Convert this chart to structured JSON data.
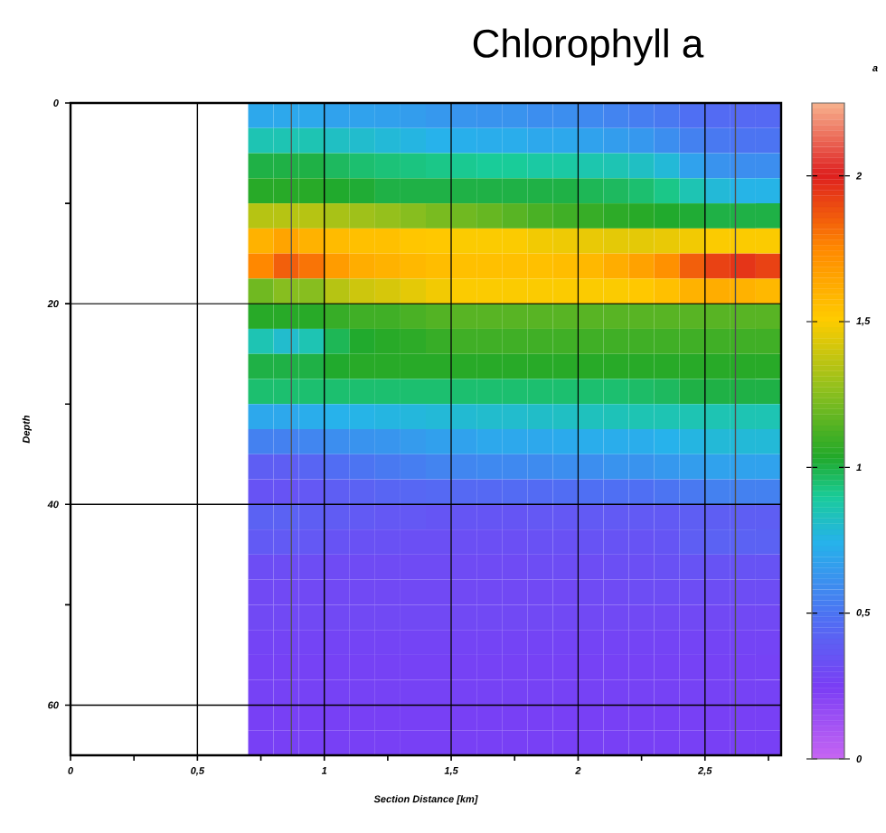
{
  "chart_data": {
    "type": "heatmap",
    "title": "Chlorophyll a",
    "xlabel": "Section Distance [km]",
    "ylabel": "Depth",
    "clabel": "a",
    "xlim": [
      0,
      2.8
    ],
    "ylim": [
      65,
      0
    ],
    "xticks": [
      {
        "value": 0,
        "label": "0"
      },
      {
        "value": 0.25,
        "label": null
      },
      {
        "value": 0.5,
        "label": "0,5"
      },
      {
        "value": 0.75,
        "label": null
      },
      {
        "value": 1,
        "label": "1"
      },
      {
        "value": 1.25,
        "label": null
      },
      {
        "value": 1.5,
        "label": "1,5"
      },
      {
        "value": 1.75,
        "label": null
      },
      {
        "value": 2,
        "label": "2"
      },
      {
        "value": 2.25,
        "label": null
      },
      {
        "value": 2.5,
        "label": "2,5"
      },
      {
        "value": 2.75,
        "label": null
      }
    ],
    "yticks": [
      {
        "value": 0,
        "label": "0"
      },
      {
        "value": 10,
        "label": null
      },
      {
        "value": 20,
        "label": "20"
      },
      {
        "value": 30,
        "label": null
      },
      {
        "value": 40,
        "label": "40"
      },
      {
        "value": 50,
        "label": null
      },
      {
        "value": 60,
        "label": "60"
      }
    ],
    "grid": true,
    "clim": [
      0,
      2.25
    ],
    "cticks": [
      {
        "value": 0,
        "label": "0"
      },
      {
        "value": 0.5,
        "label": "0,5"
      },
      {
        "value": 1,
        "label": "1"
      },
      {
        "value": 1.5,
        "label": "1,5"
      },
      {
        "value": 2,
        "label": "2"
      }
    ],
    "ref_lines": [
      {
        "axis": "x",
        "value": 0.87,
        "color": "#505050"
      },
      {
        "axis": "x",
        "value": 2.62,
        "color": "#505050"
      }
    ],
    "cells": [
      [
        null,
        null,
        null,
        null,
        null,
        null,
        null,
        0.7,
        0.7,
        0.7,
        0.68,
        0.68,
        0.67,
        0.66,
        0.64,
        0.63,
        0.62,
        0.62,
        0.6,
        0.6,
        0.58,
        0.56,
        0.54,
        0.52,
        0.48,
        0.46,
        0.45,
        0.45
      ],
      [
        null,
        null,
        null,
        null,
        null,
        null,
        null,
        0.85,
        0.85,
        0.85,
        0.82,
        0.8,
        0.78,
        0.76,
        0.74,
        0.73,
        0.72,
        0.72,
        0.7,
        0.7,
        0.68,
        0.66,
        0.64,
        0.6,
        0.55,
        0.52,
        0.5,
        0.5
      ],
      [
        null,
        null,
        null,
        null,
        null,
        null,
        null,
        1.0,
        1.0,
        1.0,
        0.97,
        0.95,
        0.94,
        0.93,
        0.92,
        0.91,
        0.9,
        0.9,
        0.88,
        0.88,
        0.86,
        0.85,
        0.82,
        0.78,
        0.68,
        0.62,
        0.6,
        0.6
      ],
      [
        null,
        null,
        null,
        null,
        null,
        null,
        null,
        1.05,
        1.05,
        1.05,
        1.03,
        1.02,
        1.0,
        1.0,
        1.0,
        1.0,
        1.0,
        1.0,
        1.0,
        1.0,
        0.98,
        0.97,
        0.95,
        0.92,
        0.85,
        0.78,
        0.75,
        0.75
      ],
      [
        null,
        null,
        null,
        null,
        null,
        null,
        null,
        1.35,
        1.35,
        1.35,
        1.32,
        1.3,
        1.28,
        1.25,
        1.22,
        1.2,
        1.18,
        1.15,
        1.12,
        1.1,
        1.08,
        1.06,
        1.05,
        1.03,
        1.02,
        1.0,
        1.0,
        1.0
      ],
      [
        null,
        null,
        null,
        null,
        null,
        null,
        null,
        1.6,
        1.65,
        1.6,
        1.57,
        1.55,
        1.55,
        1.53,
        1.52,
        1.5,
        1.5,
        1.5,
        1.48,
        1.47,
        1.46,
        1.45,
        1.45,
        1.46,
        1.48,
        1.5,
        1.5,
        1.5
      ],
      [
        null,
        null,
        null,
        null,
        null,
        null,
        null,
        1.75,
        1.85,
        1.8,
        1.68,
        1.62,
        1.6,
        1.58,
        1.56,
        1.55,
        1.55,
        1.55,
        1.55,
        1.56,
        1.58,
        1.62,
        1.66,
        1.72,
        1.85,
        1.92,
        1.95,
        1.92
      ],
      [
        null,
        null,
        null,
        null,
        null,
        null,
        null,
        1.2,
        1.25,
        1.25,
        1.35,
        1.4,
        1.42,
        1.45,
        1.48,
        1.5,
        1.5,
        1.5,
        1.5,
        1.5,
        1.5,
        1.5,
        1.52,
        1.55,
        1.6,
        1.62,
        1.6,
        1.58
      ],
      [
        null,
        null,
        null,
        null,
        null,
        null,
        null,
        1.05,
        1.05,
        1.05,
        1.08,
        1.1,
        1.1,
        1.12,
        1.14,
        1.15,
        1.15,
        1.15,
        1.15,
        1.15,
        1.15,
        1.15,
        1.15,
        1.15,
        1.15,
        1.15,
        1.15,
        1.15
      ],
      [
        null,
        null,
        null,
        null,
        null,
        null,
        null,
        0.85,
        0.8,
        0.85,
        0.98,
        1.03,
        1.05,
        1.06,
        1.08,
        1.1,
        1.1,
        1.1,
        1.1,
        1.1,
        1.1,
        1.1,
        1.1,
        1.1,
        1.1,
        1.1,
        1.1,
        1.1
      ],
      [
        null,
        null,
        null,
        null,
        null,
        null,
        null,
        1.0,
        1.0,
        1.0,
        1.03,
        1.05,
        1.05,
        1.05,
        1.05,
        1.05,
        1.05,
        1.05,
        1.05,
        1.05,
        1.05,
        1.05,
        1.05,
        1.05,
        1.05,
        1.05,
        1.05,
        1.05
      ],
      [
        null,
        null,
        null,
        null,
        null,
        null,
        null,
        0.95,
        0.95,
        0.95,
        0.95,
        0.95,
        0.95,
        0.95,
        0.95,
        0.95,
        0.95,
        0.95,
        0.95,
        0.95,
        0.95,
        0.95,
        0.96,
        0.97,
        1.0,
        1.0,
        1.0,
        1.0
      ],
      [
        null,
        null,
        null,
        null,
        null,
        null,
        null,
        0.7,
        0.7,
        0.72,
        0.74,
        0.75,
        0.76,
        0.77,
        0.78,
        0.79,
        0.8,
        0.8,
        0.81,
        0.82,
        0.83,
        0.84,
        0.85,
        0.85,
        0.85,
        0.85,
        0.85,
        0.85
      ],
      [
        null,
        null,
        null,
        null,
        null,
        null,
        null,
        0.55,
        0.55,
        0.57,
        0.6,
        0.62,
        0.63,
        0.65,
        0.67,
        0.68,
        0.7,
        0.7,
        0.7,
        0.71,
        0.72,
        0.72,
        0.72,
        0.74,
        0.76,
        0.78,
        0.78,
        0.78
      ],
      [
        null,
        null,
        null,
        null,
        null,
        null,
        null,
        0.4,
        0.4,
        0.43,
        0.47,
        0.5,
        0.52,
        0.54,
        0.56,
        0.57,
        0.58,
        0.58,
        0.59,
        0.6,
        0.6,
        0.62,
        0.62,
        0.64,
        0.66,
        0.68,
        0.68,
        0.68
      ],
      [
        null,
        null,
        null,
        null,
        null,
        null,
        null,
        0.35,
        0.35,
        0.37,
        0.4,
        0.42,
        0.43,
        0.44,
        0.45,
        0.45,
        0.45,
        0.46,
        0.46,
        0.47,
        0.48,
        0.48,
        0.48,
        0.5,
        0.52,
        0.55,
        0.55,
        0.55
      ],
      [
        null,
        null,
        null,
        null,
        null,
        null,
        null,
        0.42,
        0.42,
        0.4,
        0.39,
        0.38,
        0.37,
        0.37,
        0.36,
        0.36,
        0.36,
        0.36,
        0.37,
        0.37,
        0.38,
        0.38,
        0.38,
        0.38,
        0.4,
        0.4,
        0.4,
        0.4
      ],
      [
        null,
        null,
        null,
        null,
        null,
        null,
        null,
        0.38,
        0.38,
        0.37,
        0.35,
        0.34,
        0.34,
        0.33,
        0.33,
        0.33,
        0.33,
        0.33,
        0.34,
        0.34,
        0.35,
        0.35,
        0.35,
        0.36,
        0.4,
        0.42,
        0.42,
        0.42
      ],
      [
        null,
        null,
        null,
        null,
        null,
        null,
        null,
        0.32,
        0.32,
        0.32,
        0.31,
        0.31,
        0.31,
        0.31,
        0.31,
        0.31,
        0.31,
        0.31,
        0.32,
        0.32,
        0.32,
        0.33,
        0.33,
        0.34,
        0.35,
        0.35,
        0.35,
        0.35
      ],
      [
        null,
        null,
        null,
        null,
        null,
        null,
        null,
        0.3,
        0.3,
        0.3,
        0.3,
        0.3,
        0.3,
        0.3,
        0.3,
        0.3,
        0.3,
        0.3,
        0.3,
        0.3,
        0.31,
        0.31,
        0.32,
        0.32,
        0.32,
        0.32,
        0.32,
        0.32
      ],
      [
        null,
        null,
        null,
        null,
        null,
        null,
        null,
        0.3,
        0.3,
        0.3,
        0.3,
        0.3,
        0.3,
        0.3,
        0.3,
        0.3,
        0.3,
        0.3,
        0.3,
        0.3,
        0.3,
        0.3,
        0.3,
        0.3,
        0.3,
        0.3,
        0.3,
        0.3
      ],
      [
        null,
        null,
        null,
        null,
        null,
        null,
        null,
        0.28,
        0.28,
        0.28,
        0.28,
        0.28,
        0.28,
        0.28,
        0.28,
        0.28,
        0.28,
        0.28,
        0.28,
        0.28,
        0.28,
        0.28,
        0.28,
        0.28,
        0.28,
        0.28,
        0.28,
        0.28
      ],
      [
        null,
        null,
        null,
        null,
        null,
        null,
        null,
        0.27,
        0.27,
        0.27,
        0.27,
        0.27,
        0.27,
        0.27,
        0.27,
        0.27,
        0.27,
        0.27,
        0.27,
        0.27,
        0.27,
        0.27,
        0.27,
        0.27,
        0.27,
        0.27,
        0.27,
        0.27
      ],
      [
        null,
        null,
        null,
        null,
        null,
        null,
        null,
        0.27,
        0.27,
        0.27,
        0.27,
        0.27,
        0.27,
        0.27,
        0.27,
        0.27,
        0.27,
        0.27,
        0.27,
        0.27,
        0.27,
        0.27,
        0.27,
        0.27,
        0.27,
        0.27,
        0.27,
        0.27
      ],
      [
        null,
        null,
        null,
        null,
        null,
        null,
        null,
        0.26,
        0.26,
        0.26,
        0.26,
        0.26,
        0.26,
        0.26,
        0.26,
        0.26,
        0.26,
        0.26,
        0.26,
        0.26,
        0.26,
        0.26,
        0.26,
        0.26,
        0.26,
        0.26,
        0.26,
        0.26
      ],
      [
        null,
        null,
        null,
        null,
        null,
        null,
        null,
        0.26,
        0.26,
        0.26,
        0.26,
        0.26,
        0.26,
        0.26,
        0.26,
        0.26,
        0.26,
        0.26,
        0.26,
        0.26,
        0.26,
        0.26,
        0.26,
        0.26,
        0.26,
        0.26,
        0.26,
        0.26
      ]
    ]
  }
}
